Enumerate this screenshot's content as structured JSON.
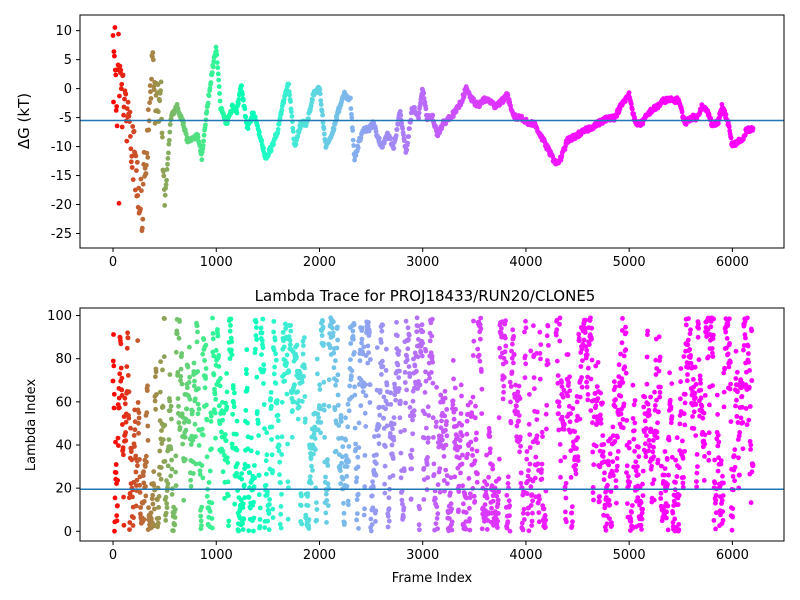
{
  "chart_data": [
    {
      "type": "scatter",
      "title": "",
      "xlabel": "",
      "ylabel": "ΔG (kT)",
      "xlim": [
        -320,
        6500
      ],
      "ylim": [
        -27.5,
        12.7
      ],
      "xticks": [
        0,
        1000,
        2000,
        3000,
        4000,
        5000,
        6000
      ],
      "yticks": [
        10,
        5,
        0,
        -5,
        -10,
        -15,
        -20,
        -25
      ],
      "hline": -5.5,
      "hline_color": "#1f77b4",
      "colormap": "rainbow",
      "anchors": [
        [
          0,
          12
        ],
        [
          60,
          0
        ],
        [
          150,
          -6
        ],
        [
          220,
          -14
        ],
        [
          280,
          -21
        ],
        [
          330,
          -9
        ],
        [
          380,
          3
        ],
        [
          420,
          -4
        ],
        [
          460,
          1
        ],
        [
          500,
          -20
        ],
        [
          560,
          -5
        ],
        [
          620,
          -3
        ],
        [
          680,
          -6
        ],
        [
          720,
          -9
        ],
        [
          820,
          -8
        ],
        [
          860,
          -12
        ],
        [
          900,
          -5
        ],
        [
          960,
          3
        ],
        [
          1000,
          7
        ],
        [
          1040,
          -3
        ],
        [
          1100,
          -6
        ],
        [
          1160,
          -3
        ],
        [
          1200,
          -4
        ],
        [
          1240,
          1
        ],
        [
          1300,
          -7
        ],
        [
          1360,
          -4
        ],
        [
          1420,
          -8
        ],
        [
          1480,
          -12
        ],
        [
          1540,
          -10
        ],
        [
          1600,
          -7
        ],
        [
          1640,
          -3
        ],
        [
          1700,
          1
        ],
        [
          1760,
          -10
        ],
        [
          1820,
          -6
        ],
        [
          1880,
          -6
        ],
        [
          1940,
          -1
        ],
        [
          2000,
          0
        ],
        [
          2060,
          -10
        ],
        [
          2120,
          -8
        ],
        [
          2180,
          -4
        ],
        [
          2240,
          -1
        ],
        [
          2300,
          -2
        ],
        [
          2340,
          -12
        ],
        [
          2420,
          -7
        ],
        [
          2480,
          -7
        ],
        [
          2520,
          -6
        ],
        [
          2600,
          -10
        ],
        [
          2660,
          -8
        ],
        [
          2720,
          -10
        ],
        [
          2780,
          -4
        ],
        [
          2840,
          -11
        ],
        [
          2900,
          -3
        ],
        [
          2960,
          -5
        ],
        [
          3000,
          0
        ],
        [
          3040,
          -5
        ],
        [
          3100,
          -5
        ],
        [
          3140,
          -8
        ],
        [
          3200,
          -6
        ],
        [
          3260,
          -5
        ],
        [
          3320,
          -4
        ],
        [
          3380,
          -2
        ],
        [
          3420,
          0
        ],
        [
          3480,
          -2
        ],
        [
          3540,
          -3
        ],
        [
          3580,
          -2
        ],
        [
          3640,
          -2
        ],
        [
          3700,
          -3
        ],
        [
          3780,
          -2
        ],
        [
          3820,
          -1
        ],
        [
          3860,
          -4
        ],
        [
          3900,
          -5
        ],
        [
          3960,
          -5
        ],
        [
          4020,
          -6
        ],
        [
          4080,
          -6
        ],
        [
          4140,
          -8
        ],
        [
          4200,
          -10
        ],
        [
          4260,
          -12
        ],
        [
          4300,
          -13
        ],
        [
          4340,
          -12
        ],
        [
          4400,
          -9
        ],
        [
          4500,
          -8
        ],
        [
          4600,
          -7
        ],
        [
          4700,
          -6
        ],
        [
          4800,
          -5
        ],
        [
          4860,
          -5
        ],
        [
          4920,
          -3
        ],
        [
          5000,
          -1
        ],
        [
          5060,
          -6
        ],
        [
          5120,
          -6
        ],
        [
          5200,
          -4
        ],
        [
          5280,
          -3
        ],
        [
          5340,
          -2
        ],
        [
          5420,
          -2
        ],
        [
          5480,
          -2
        ],
        [
          5540,
          -6
        ],
        [
          5600,
          -5
        ],
        [
          5660,
          -5
        ],
        [
          5700,
          -3
        ],
        [
          5760,
          -4
        ],
        [
          5800,
          -6
        ],
        [
          5860,
          -6
        ],
        [
          5900,
          -3
        ],
        [
          5960,
          -6
        ],
        [
          6000,
          -10
        ],
        [
          6060,
          -9
        ],
        [
          6100,
          -9
        ],
        [
          6140,
          -7
        ],
        [
          6200,
          -7
        ]
      ],
      "n_points": 6200,
      "x_range": [
        0,
        6200
      ]
    },
    {
      "type": "scatter",
      "title": "Lambda Trace for PROJ18433/RUN20/CLONE5",
      "xlabel": "Frame Index",
      "ylabel": "Lambda Index",
      "xlim": [
        -320,
        6500
      ],
      "ylim": [
        -4.5,
        103.5
      ],
      "xticks": [
        0,
        1000,
        2000,
        3000,
        4000,
        5000,
        6000
      ],
      "yticks": [
        0,
        20,
        40,
        60,
        80,
        100
      ],
      "hline": 19.5,
      "hline_color": "#1f77b4",
      "colormap": "rainbow",
      "value_range": [
        0,
        99
      ],
      "n_points": 6200,
      "x_range": [
        0,
        6200
      ]
    }
  ]
}
